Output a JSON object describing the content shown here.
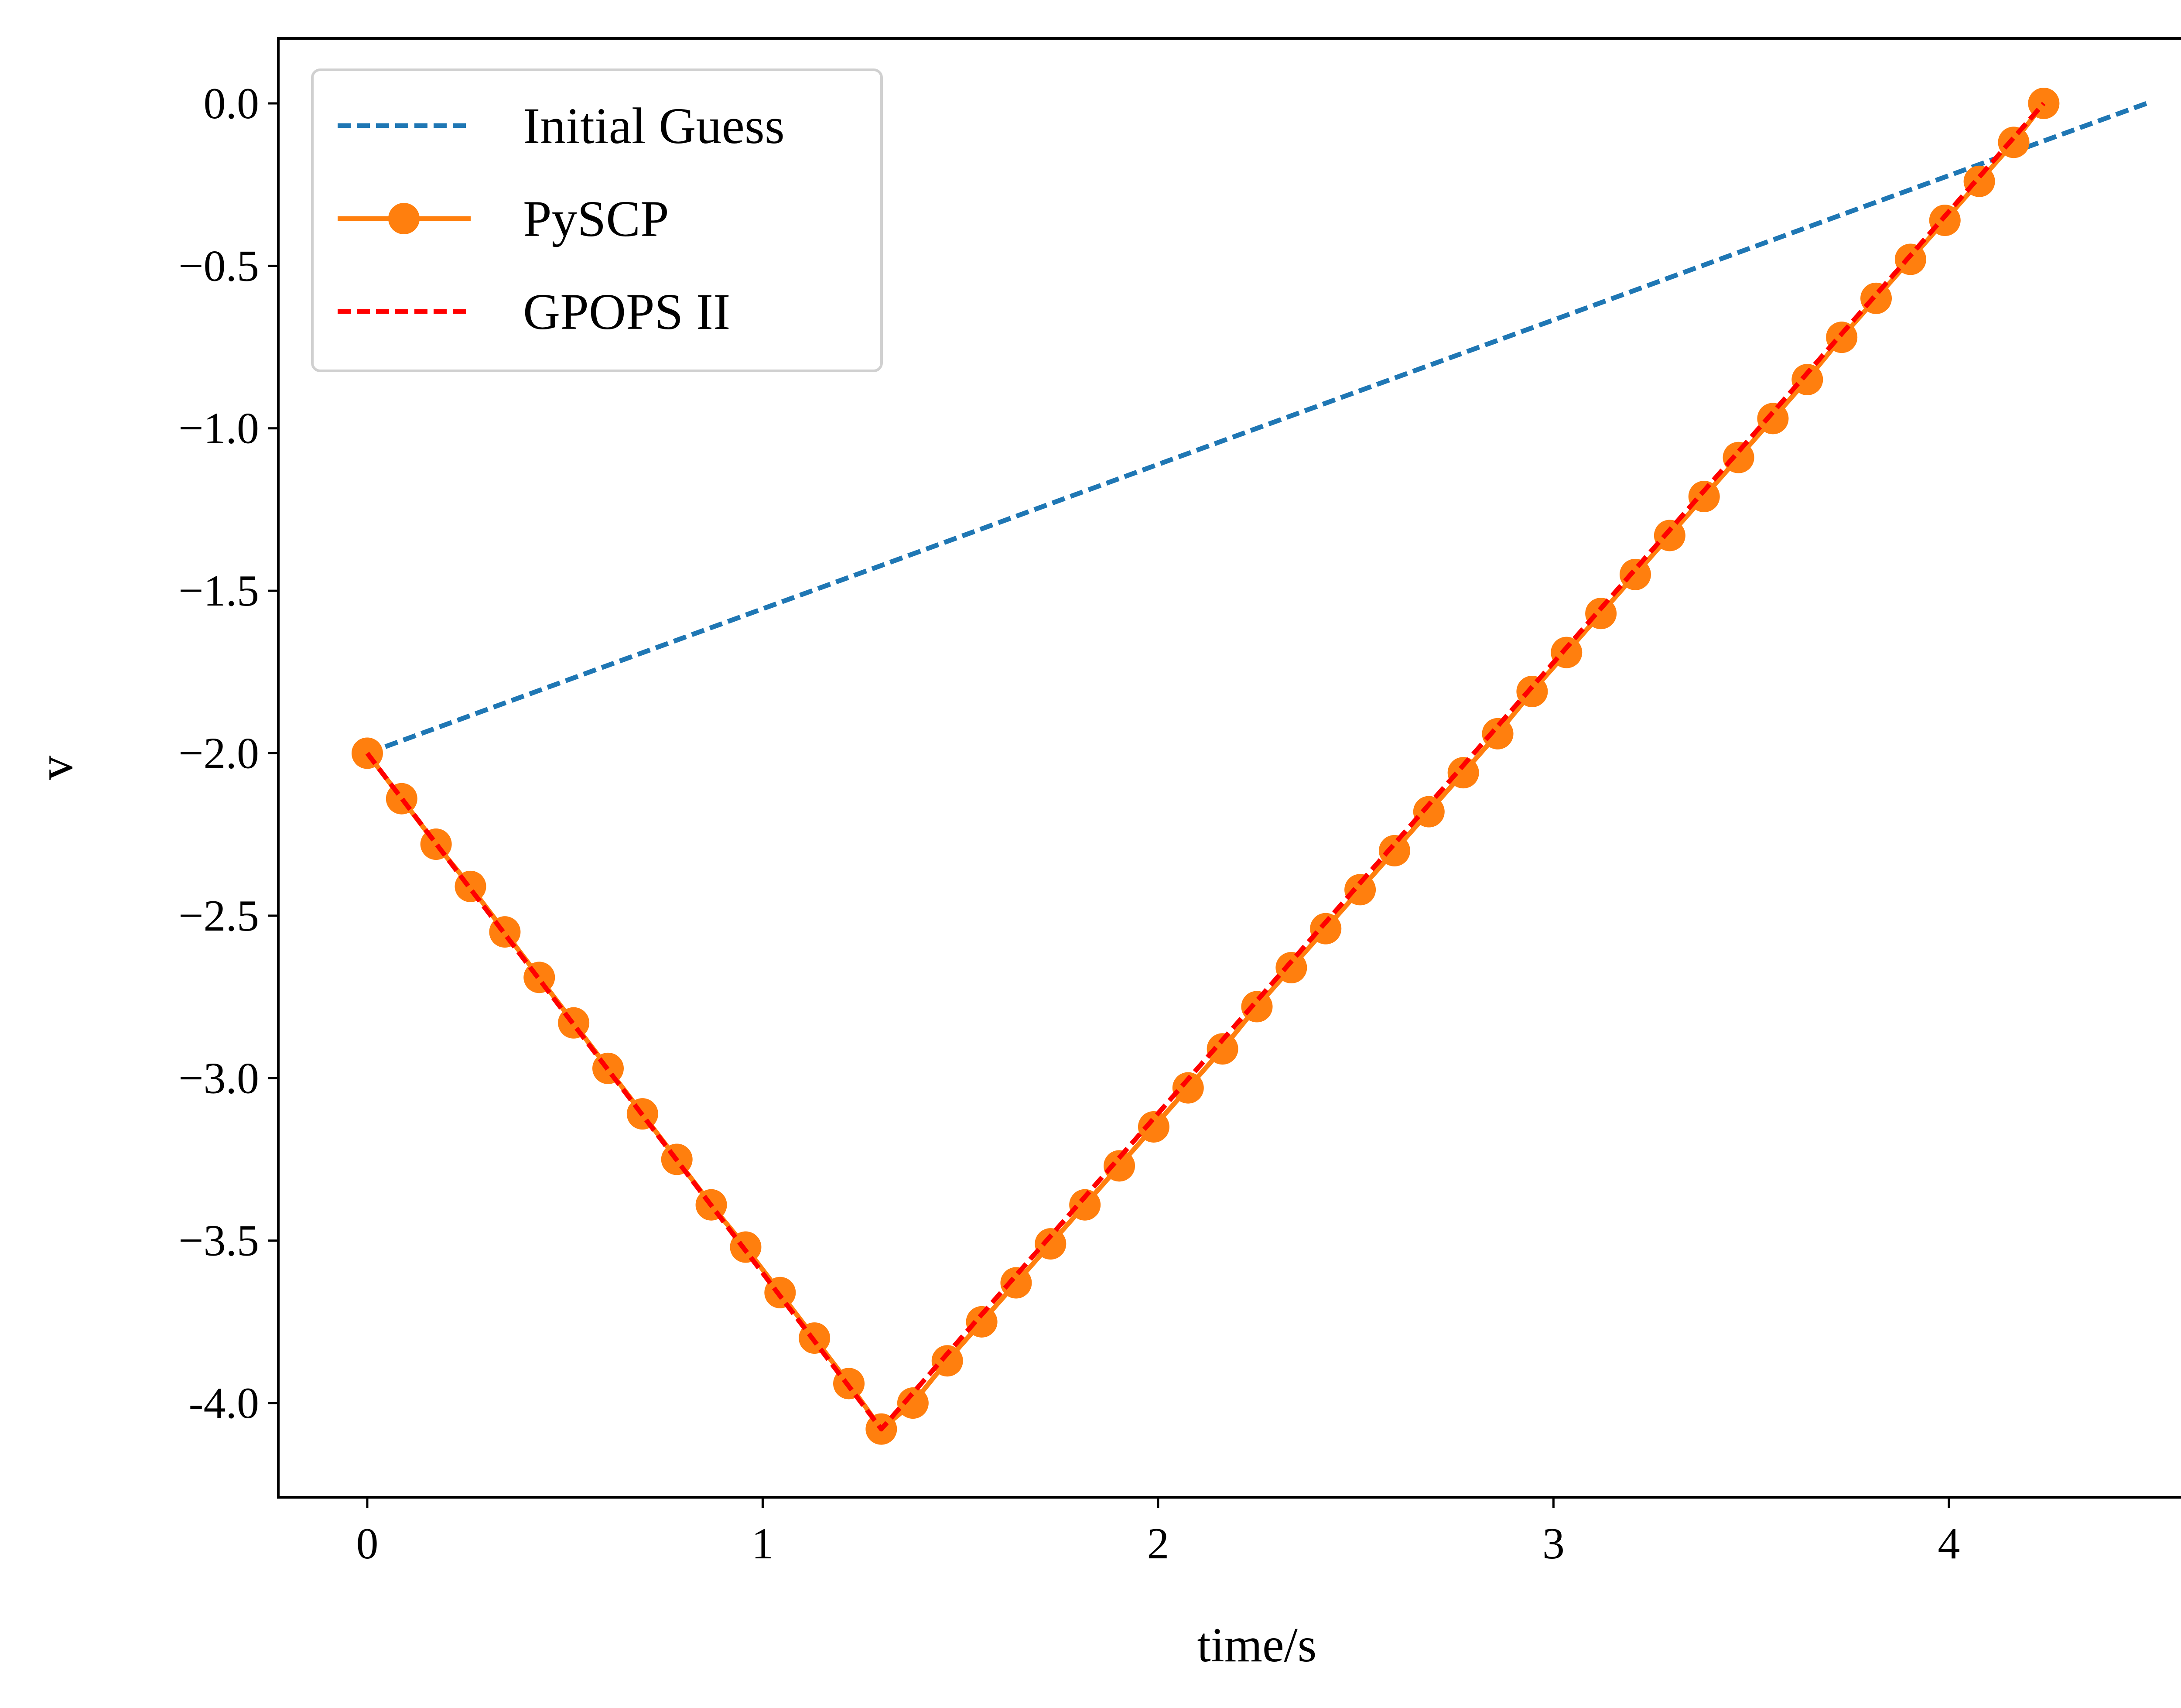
{
  "chart_data": {
    "type": "line",
    "title": "",
    "xlabel": "time/s",
    "ylabel": "v",
    "xlim": [
      -0.225,
      4.725
    ],
    "ylim": [
      -4.29,
      0.2
    ],
    "xticks": [
      0,
      1,
      2,
      3,
      4
    ],
    "xtick_labels": [
      "0",
      "1",
      "2",
      "3",
      "4"
    ],
    "yticks": [
      0.0,
      -0.5,
      -1.0,
      -1.5,
      -2.0,
      -2.5,
      -3.0,
      -3.5,
      -4.0
    ],
    "ytick_labels": [
      "0.0",
      "−0.5",
      "−1.0",
      "−1.5",
      "−2.0",
      "−2.5",
      "−3.0",
      "−3.5",
      "-4.0"
    ],
    "grid": false,
    "legend_position": "upper-left",
    "series": [
      {
        "name": "Initial Guess",
        "color": "#1f77b4",
        "style": "dashed",
        "marker": "none",
        "x": [
          0,
          4.5
        ],
        "y": [
          -2.0,
          0.0
        ]
      },
      {
        "name": "PySCP",
        "color": "#ff7f0e",
        "style": "solid",
        "marker": "circle",
        "x": [
          0.0,
          0.087,
          0.174,
          0.261,
          0.348,
          0.435,
          0.522,
          0.609,
          0.696,
          0.783,
          0.87,
          0.957,
          1.044,
          1.131,
          1.218,
          1.3,
          1.38,
          1.467,
          1.554,
          1.641,
          1.728,
          1.815,
          1.902,
          1.989,
          2.076,
          2.163,
          2.25,
          2.337,
          2.424,
          2.511,
          2.598,
          2.685,
          2.772,
          2.859,
          2.946,
          3.033,
          3.12,
          3.207,
          3.294,
          3.381,
          3.468,
          3.555,
          3.642,
          3.729,
          3.816,
          3.903,
          3.99,
          4.077,
          4.164,
          4.24
        ],
        "y": [
          -2.0,
          -2.14,
          -2.28,
          -2.41,
          -2.55,
          -2.69,
          -2.83,
          -2.97,
          -3.11,
          -3.25,
          -3.39,
          -3.52,
          -3.66,
          -3.8,
          -3.94,
          -4.08,
          -4.0,
          -3.87,
          -3.75,
          -3.63,
          -3.51,
          -3.39,
          -3.27,
          -3.15,
          -3.03,
          -2.91,
          -2.78,
          -2.66,
          -2.54,
          -2.42,
          -2.3,
          -2.18,
          -2.06,
          -1.94,
          -1.81,
          -1.69,
          -1.57,
          -1.45,
          -1.33,
          -1.21,
          -1.09,
          -0.97,
          -0.85,
          -0.72,
          -0.6,
          -0.48,
          -0.36,
          -0.24,
          -0.12,
          0.0
        ]
      },
      {
        "name": "GPOPS II",
        "color": "#ff0000",
        "style": "dashed",
        "marker": "none",
        "x": [
          0.0,
          1.3,
          4.24
        ],
        "y": [
          -2.0,
          -4.08,
          0.0
        ]
      }
    ]
  }
}
